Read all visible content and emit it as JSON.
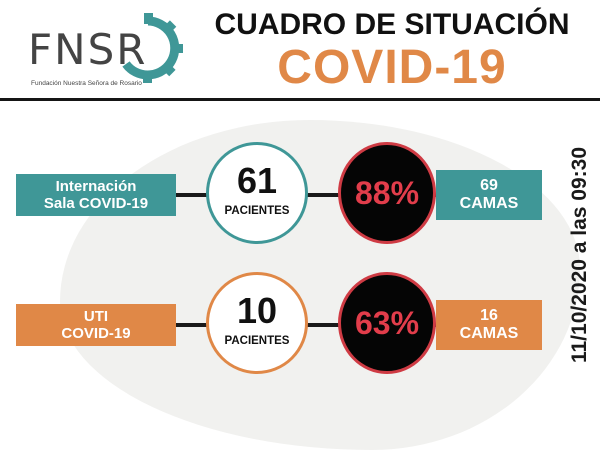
{
  "logo": {
    "text": "FNSR",
    "subtitle": "Fundación Nuestra Señora de Rosario"
  },
  "title": {
    "line1": "CUADRO DE SITUACIÓN",
    "line2": "COVID-19"
  },
  "colors": {
    "teal": "#3f9797",
    "orange": "#e08847",
    "red": "#e23d4b",
    "black": "#050505"
  },
  "rows": [
    {
      "label_line1": "Internación",
      "label_line2": "Sala COVID-19",
      "patients": "61",
      "patients_label": "PACIENTES",
      "occupancy": "88%",
      "beds_count": "69",
      "beds_label": "CAMAS",
      "color": "teal"
    },
    {
      "label_line1": "UTI",
      "label_line2": "COVID-19",
      "patients": "10",
      "patients_label": "PACIENTES",
      "occupancy": "63%",
      "beds_count": "16",
      "beds_label": "CAMAS",
      "color": "orange"
    }
  ],
  "date_text": "11/10/2020 a las 09:30"
}
